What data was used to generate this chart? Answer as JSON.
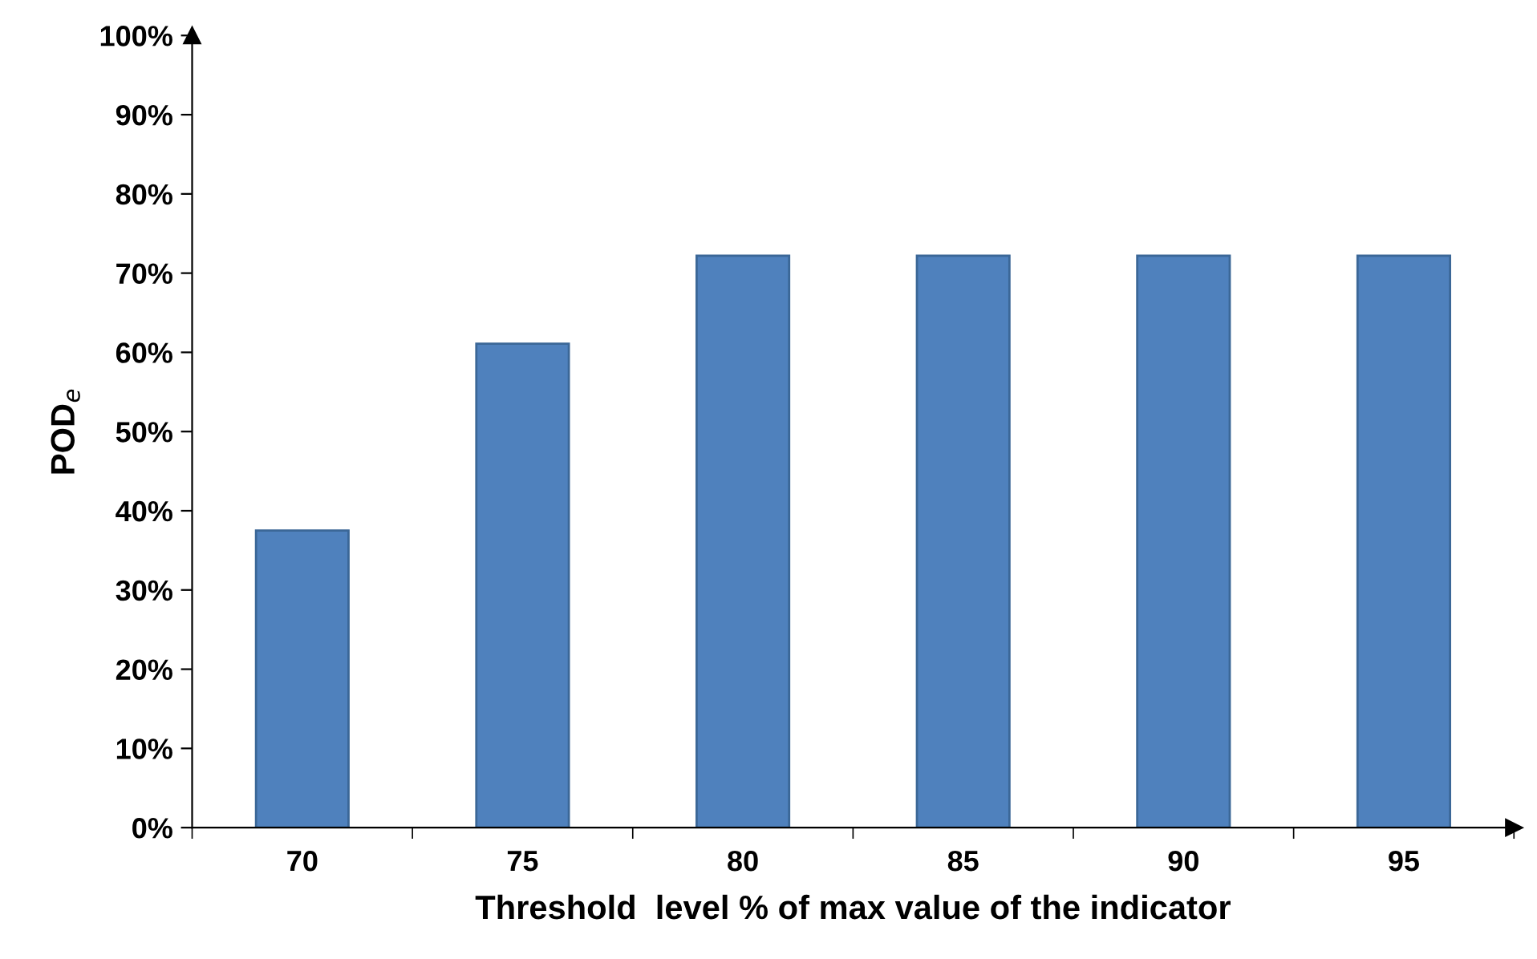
{
  "chart_data": {
    "type": "bar",
    "xlabel": "Threshold  level % of max value of the indicator",
    "ylabel": "POD$_{e}$",
    "categories": [
      "70",
      "75",
      "80",
      "85",
      "90",
      "95"
    ],
    "values": [
      37.5,
      61.1,
      72.2,
      72.2,
      72.2,
      72.2
    ],
    "color": "#4f81bd",
    "ylim": [
      0,
      100
    ],
    "yticks": [
      {
        "value": 0,
        "label": "0%"
      },
      {
        "value": 10,
        "label": "10%"
      },
      {
        "value": 20,
        "label": "20%"
      },
      {
        "value": 30,
        "label": "30%"
      },
      {
        "value": 40,
        "label": "40%"
      },
      {
        "value": 50,
        "label": "50%"
      },
      {
        "value": 60,
        "label": "60%"
      },
      {
        "value": 70,
        "label": "70%"
      },
      {
        "value": 80,
        "label": "80%"
      },
      {
        "value": 90,
        "label": "90%"
      },
      {
        "value": 100,
        "label": "100%"
      }
    ],
    "grid": false,
    "legend": false
  }
}
